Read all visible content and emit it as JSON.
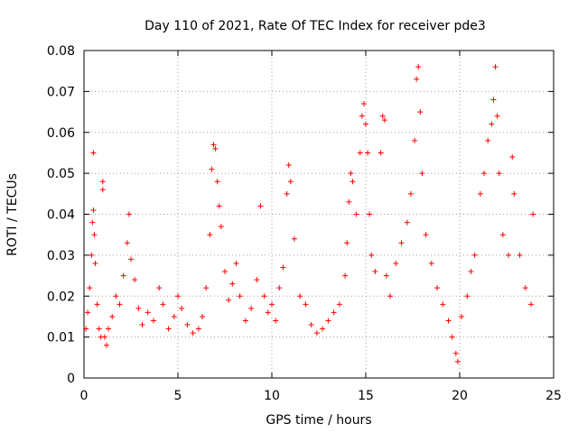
{
  "chart_data": {
    "type": "scatter",
    "title": "Day 110 of 2021, Rate Of TEC Index for receiver pde3",
    "xlabel": "GPS time / hours",
    "ylabel": "ROTI / TECUs",
    "xlim": [
      0,
      25
    ],
    "ylim": [
      0,
      0.08
    ],
    "x_ticks": [
      "0",
      "5",
      "10",
      "15",
      "20",
      "25"
    ],
    "y_ticks": [
      "0",
      "0.01",
      "0.02",
      "0.03",
      "0.04",
      "0.05",
      "0.06",
      "0.07",
      "0.08"
    ],
    "x_tick_values": [
      0,
      5,
      10,
      15,
      20,
      25
    ],
    "y_tick_values": [
      0,
      0.01,
      0.02,
      0.03,
      0.04,
      0.05,
      0.06,
      0.07,
      0.08
    ],
    "grid": true,
    "marker": "+",
    "color": "#ff0000",
    "series": [
      {
        "points": [
          [
            0.1,
            0.012
          ],
          [
            0.2,
            0.016
          ],
          [
            0.3,
            0.022
          ],
          [
            0.4,
            0.03
          ],
          [
            0.45,
            0.038
          ],
          [
            0.5,
            0.041
          ],
          [
            0.55,
            0.035
          ],
          [
            0.6,
            0.028
          ],
          [
            0.5,
            0.055
          ],
          [
            0.7,
            0.018
          ],
          [
            0.8,
            0.012
          ],
          [
            0.9,
            0.01
          ],
          [
            1.0,
            0.048
          ],
          [
            1.0,
            0.046
          ],
          [
            1.1,
            0.01
          ],
          [
            1.2,
            0.008
          ],
          [
            1.3,
            0.012
          ],
          [
            1.5,
            0.015
          ],
          [
            1.7,
            0.02
          ],
          [
            1.9,
            0.018
          ],
          [
            2.1,
            0.025
          ],
          [
            2.3,
            0.033
          ],
          [
            2.4,
            0.04
          ],
          [
            2.5,
            0.029
          ],
          [
            2.7,
            0.024
          ],
          [
            2.9,
            0.017
          ],
          [
            3.1,
            0.013
          ],
          [
            3.4,
            0.016
          ],
          [
            3.7,
            0.014
          ],
          [
            4.0,
            0.022
          ],
          [
            4.2,
            0.018
          ],
          [
            4.5,
            0.012
          ],
          [
            4.8,
            0.015
          ],
          [
            5.0,
            0.02
          ],
          [
            5.2,
            0.017
          ],
          [
            5.5,
            0.013
          ],
          [
            5.8,
            0.011
          ],
          [
            6.1,
            0.012
          ],
          [
            6.3,
            0.015
          ],
          [
            6.5,
            0.022
          ],
          [
            6.7,
            0.035
          ],
          [
            6.8,
            0.051
          ],
          [
            6.9,
            0.057
          ],
          [
            7.0,
            0.056
          ],
          [
            7.1,
            0.048
          ],
          [
            7.2,
            0.042
          ],
          [
            7.3,
            0.037
          ],
          [
            7.5,
            0.026
          ],
          [
            7.7,
            0.019
          ],
          [
            7.9,
            0.023
          ],
          [
            8.1,
            0.028
          ],
          [
            8.3,
            0.02
          ],
          [
            8.6,
            0.014
          ],
          [
            8.9,
            0.017
          ],
          [
            9.2,
            0.024
          ],
          [
            9.4,
            0.042
          ],
          [
            9.6,
            0.02
          ],
          [
            9.8,
            0.016
          ],
          [
            10.0,
            0.018
          ],
          [
            10.2,
            0.014
          ],
          [
            10.4,
            0.022
          ],
          [
            10.6,
            0.027
          ],
          [
            10.8,
            0.045
          ],
          [
            10.9,
            0.052
          ],
          [
            11.0,
            0.048
          ],
          [
            11.2,
            0.034
          ],
          [
            11.5,
            0.02
          ],
          [
            11.8,
            0.018
          ],
          [
            12.1,
            0.013
          ],
          [
            12.4,
            0.011
          ],
          [
            12.7,
            0.012
          ],
          [
            13.0,
            0.014
          ],
          [
            13.3,
            0.016
          ],
          [
            13.6,
            0.018
          ],
          [
            13.9,
            0.025
          ],
          [
            14.0,
            0.033
          ],
          [
            14.1,
            0.043
          ],
          [
            14.2,
            0.05
          ],
          [
            14.3,
            0.048
          ],
          [
            14.5,
            0.04
          ],
          [
            14.7,
            0.055
          ],
          [
            14.8,
            0.064
          ],
          [
            14.9,
            0.067
          ],
          [
            15.0,
            0.062
          ],
          [
            15.1,
            0.055
          ],
          [
            15.2,
            0.04
          ],
          [
            15.3,
            0.03
          ],
          [
            15.5,
            0.026
          ],
          [
            15.8,
            0.055
          ],
          [
            15.9,
            0.064
          ],
          [
            16.0,
            0.063
          ],
          [
            16.1,
            0.025
          ],
          [
            16.3,
            0.02
          ],
          [
            16.6,
            0.028
          ],
          [
            16.9,
            0.033
          ],
          [
            17.2,
            0.038
          ],
          [
            17.4,
            0.045
          ],
          [
            17.6,
            0.058
          ],
          [
            17.7,
            0.073
          ],
          [
            17.8,
            0.076
          ],
          [
            17.9,
            0.065
          ],
          [
            18.0,
            0.05
          ],
          [
            18.2,
            0.035
          ],
          [
            18.5,
            0.028
          ],
          [
            18.8,
            0.022
          ],
          [
            19.1,
            0.018
          ],
          [
            19.4,
            0.014
          ],
          [
            19.6,
            0.01
          ],
          [
            19.8,
            0.006
          ],
          [
            19.9,
            0.004
          ],
          [
            20.1,
            0.015
          ],
          [
            20.4,
            0.02
          ],
          [
            20.6,
            0.026
          ],
          [
            20.8,
            0.03
          ],
          [
            21.1,
            0.045
          ],
          [
            21.3,
            0.05
          ],
          [
            21.5,
            0.058
          ],
          [
            21.7,
            0.062
          ],
          [
            21.8,
            0.068
          ],
          [
            21.9,
            0.076
          ],
          [
            22.0,
            0.064
          ],
          [
            22.1,
            0.05
          ],
          [
            22.3,
            0.035
          ],
          [
            22.6,
            0.03
          ],
          [
            22.8,
            0.054
          ],
          [
            22.9,
            0.045
          ],
          [
            23.2,
            0.03
          ],
          [
            23.5,
            0.022
          ],
          [
            23.8,
            0.018
          ],
          [
            23.9,
            0.04
          ]
        ]
      }
    ]
  }
}
